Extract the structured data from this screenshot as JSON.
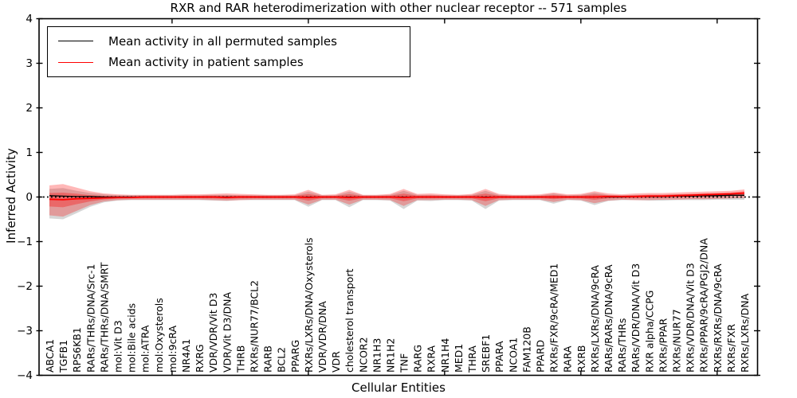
{
  "figure": {
    "background": "#ffffff"
  },
  "chart_data": {
    "type": "line",
    "title": "RXR and RAR heterodimerization with other nuclear receptor -- 571 samples",
    "xlabel": "Cellular Entities",
    "ylabel": "Inferred Activity",
    "ylim": [
      -4,
      4
    ],
    "yticks": [
      -4,
      -3,
      -2,
      -1,
      0,
      1,
      2,
      3,
      4
    ],
    "top_tick_indices": [
      9,
      19,
      29,
      39,
      49
    ],
    "grid": false,
    "legend_position": "upper left",
    "zero_line": {
      "style": "dotted",
      "color": "#000000",
      "y": 0
    },
    "categories": [
      "ABCA1",
      "TGFB1",
      "RPS6KB1",
      "RARs/THRs/DNA/Src-1",
      "RARs/THRs/DNA/SMRT",
      "mol:Vit D3",
      "mol:Bile acids",
      "mol:ATRA",
      "mol:Oxysterols",
      "mol:9cRA",
      "NR4A1",
      "RXRG",
      "VDR/VDR/Vit D3",
      "VDR/Vit D3/DNA",
      "THRB",
      "RXRs/NUR77/BCL2",
      "RARB",
      "BCL2",
      "PPARG",
      "RXRs/LXRs/DNA/Oxysterols",
      "VDR/VDR/DNA",
      "VDR",
      "cholesterol transport",
      "NCOR2",
      "NR1H3",
      "NR1H2",
      "TNF",
      "RARG",
      "RXRA",
      "NR1H4",
      "MED1",
      "THRA",
      "SREBF1",
      "PPARA",
      "NCOA1",
      "FAM120B",
      "PPARD",
      "RXRs/FXR/9cRA/MED1",
      "RARA",
      "RXRB",
      "RXRs/LXRs/DNA/9cRA",
      "RARs/RARs/DNA/9cRA",
      "RARs/THRs",
      "RARs/VDR/DNA/Vit D3",
      "RXR alpha/CCPG",
      "RXRs/PPAR",
      "RXRs/NUR77",
      "RXRs/VDR/DNA/Vit D3",
      "RXRs/PPAR/9cRA/PGJ2/DNA",
      "RXRs/RXRs/DNA/9cRA",
      "RXRs/FXR",
      "RXRs/LXRs/DNA"
    ],
    "series": [
      {
        "name": "Mean activity in all permuted samples",
        "color": "#000000",
        "values": [
          0.03,
          0.02,
          0.01,
          0.01,
          0,
          0,
          0,
          0,
          0,
          0,
          0,
          0,
          0,
          0,
          0,
          0,
          0,
          0,
          0,
          0,
          0,
          0,
          0,
          0,
          0,
          0,
          0,
          0,
          0,
          0,
          0,
          0,
          0,
          0,
          0,
          0,
          0,
          0,
          0,
          0,
          0,
          0,
          0,
          0.01,
          0.01,
          0.01,
          0.02,
          0.02,
          0.03,
          0.03,
          0.04,
          0.04
        ]
      },
      {
        "name": "Mean activity in patient samples",
        "color": "#ff0000",
        "values": [
          -0.05,
          -0.06,
          -0.04,
          -0.03,
          -0.02,
          -0.01,
          -0.01,
          0,
          0,
          0,
          0,
          0,
          0,
          -0.01,
          0,
          0,
          0,
          0,
          0,
          -0.01,
          0,
          0,
          -0.01,
          0,
          0,
          0,
          -0.01,
          0,
          0,
          0,
          0,
          0,
          -0.01,
          0,
          0,
          0,
          0,
          0,
          0,
          0,
          0,
          0.01,
          0.01,
          0.01,
          0.02,
          0.02,
          0.03,
          0.04,
          0.05,
          0.06,
          0.07,
          0.09
        ]
      }
    ],
    "bands": [
      {
        "name": "permuted-band",
        "color": "#808080",
        "opacity": 0.32,
        "upper": [
          0.18,
          0.2,
          0.14,
          0.09,
          0.06,
          0.04,
          0.04,
          0.04,
          0.04,
          0.04,
          0.04,
          0.04,
          0.05,
          0.05,
          0.04,
          0.04,
          0.04,
          0.04,
          0.04,
          0.12,
          0.04,
          0.04,
          0.12,
          0.04,
          0.04,
          0.05,
          0.14,
          0.05,
          0.05,
          0.04,
          0.04,
          0.05,
          0.14,
          0.05,
          0.04,
          0.04,
          0.04,
          0.08,
          0.04,
          0.05,
          0.1,
          0.05,
          0.04,
          0.05,
          0.05,
          0.05,
          0.06,
          0.06,
          0.07,
          0.07,
          0.08,
          0.09
        ],
        "lower": [
          -0.48,
          -0.5,
          -0.36,
          -0.22,
          -0.12,
          -0.08,
          -0.07,
          -0.07,
          -0.07,
          -0.07,
          -0.07,
          -0.07,
          -0.08,
          -0.09,
          -0.07,
          -0.07,
          -0.07,
          -0.07,
          -0.07,
          -0.22,
          -0.07,
          -0.07,
          -0.23,
          -0.07,
          -0.07,
          -0.08,
          -0.27,
          -0.08,
          -0.09,
          -0.07,
          -0.07,
          -0.08,
          -0.27,
          -0.08,
          -0.07,
          -0.07,
          -0.07,
          -0.15,
          -0.07,
          -0.08,
          -0.18,
          -0.09,
          -0.07,
          -0.07,
          -0.08,
          -0.08,
          -0.07,
          -0.07,
          -0.07,
          -0.06,
          -0.06,
          -0.06
        ]
      },
      {
        "name": "patient-band-outer",
        "color": "#ff0000",
        "opacity": 0.28,
        "upper": [
          0.26,
          0.29,
          0.21,
          0.13,
          0.08,
          0.06,
          0.05,
          0.05,
          0.05,
          0.05,
          0.06,
          0.06,
          0.07,
          0.08,
          0.07,
          0.06,
          0.05,
          0.05,
          0.06,
          0.16,
          0.05,
          0.06,
          0.16,
          0.05,
          0.05,
          0.07,
          0.18,
          0.07,
          0.08,
          0.06,
          0.05,
          0.07,
          0.18,
          0.07,
          0.05,
          0.05,
          0.06,
          0.1,
          0.06,
          0.07,
          0.13,
          0.08,
          0.06,
          0.08,
          0.09,
          0.09,
          0.1,
          0.11,
          0.12,
          0.13,
          0.14,
          0.17
        ],
        "lower": [
          -0.41,
          -0.44,
          -0.31,
          -0.18,
          -0.1,
          -0.07,
          -0.06,
          -0.06,
          -0.06,
          -0.06,
          -0.06,
          -0.06,
          -0.07,
          -0.08,
          -0.07,
          -0.06,
          -0.06,
          -0.06,
          -0.06,
          -0.17,
          -0.06,
          -0.06,
          -0.17,
          -0.06,
          -0.06,
          -0.07,
          -0.2,
          -0.07,
          -0.07,
          -0.06,
          -0.06,
          -0.07,
          -0.2,
          -0.07,
          -0.06,
          -0.06,
          -0.06,
          -0.11,
          -0.06,
          -0.07,
          -0.14,
          -0.08,
          -0.06,
          -0.07,
          -0.07,
          -0.06,
          -0.06,
          -0.05,
          -0.05,
          -0.04,
          -0.03,
          -0.02
        ]
      },
      {
        "name": "patient-band-inner",
        "color": "#ff0000",
        "opacity": 0.32,
        "derived_from": "patient-band-outer",
        "inner_scale": 0.45
      }
    ]
  }
}
